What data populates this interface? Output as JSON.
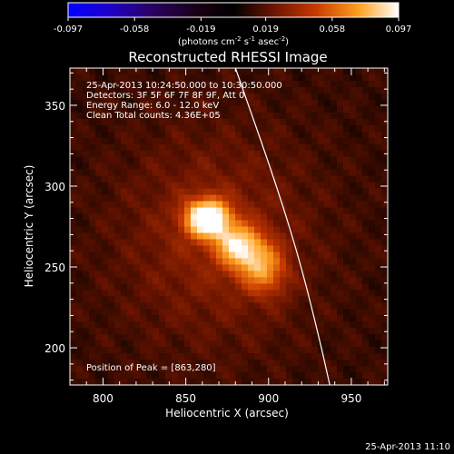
{
  "chart_data": {
    "type": "heatmap",
    "title": "Reconstructed RHESSI Image",
    "xlabel": "Heliocentric X (arcsec)",
    "ylabel": "Heliocentric Y (arcsec)",
    "xlim": [
      780,
      972
    ],
    "ylim": [
      177,
      373
    ],
    "xticks": [
      "800",
      "850",
      "900",
      "950"
    ],
    "yticks": [
      "200",
      "250",
      "300",
      "350"
    ],
    "colorbar": {
      "ticks": [
        "-0.097",
        "-0.058",
        "-0.019",
        "0.019",
        "0.058",
        "0.097"
      ],
      "range": [
        -0.097,
        0.097
      ],
      "unit_label": "(photons cm",
      "unit_sup1": "-2",
      "unit_mid": " s",
      "unit_sup2": "-1",
      "unit_end": " asec",
      "unit_sup3": "-2",
      "unit_close": ")"
    },
    "annotations": [
      "25-Apr-2013 10:24:50.000 to 10:30:50.000",
      "Detectors: 3F 5F 6F 7F 8F 9F, Att 0",
      "Energy Range: 6.0 - 12.0 keV",
      "Clean     Total counts: 4.36E+05"
    ],
    "peak_label": "Position of Peak = [863,280]",
    "peak": [
      863,
      280
    ],
    "source": {
      "core": {
        "x": 863,
        "y": 280,
        "sx": 9,
        "sy": 8,
        "amp": 0.097
      },
      "tail": [
        {
          "x": 880,
          "y": 264,
          "sx": 9,
          "sy": 9,
          "amp": 0.05
        },
        {
          "x": 892,
          "y": 255,
          "sx": 10,
          "sy": 11,
          "amp": 0.038
        },
        {
          "x": 900,
          "y": 245,
          "sx": 9,
          "sy": 10,
          "amp": 0.025
        }
      ],
      "halo": {
        "x": 868,
        "y": 268,
        "sx": 40,
        "sy": 45,
        "amp": 0.02
      }
    },
    "limb_points": [
      [
        880,
        373
      ],
      [
        905,
        300
      ],
      [
        920,
        250
      ],
      [
        932,
        200
      ],
      [
        937,
        177
      ]
    ]
  },
  "footer_date": "25-Apr-2013 11:10"
}
